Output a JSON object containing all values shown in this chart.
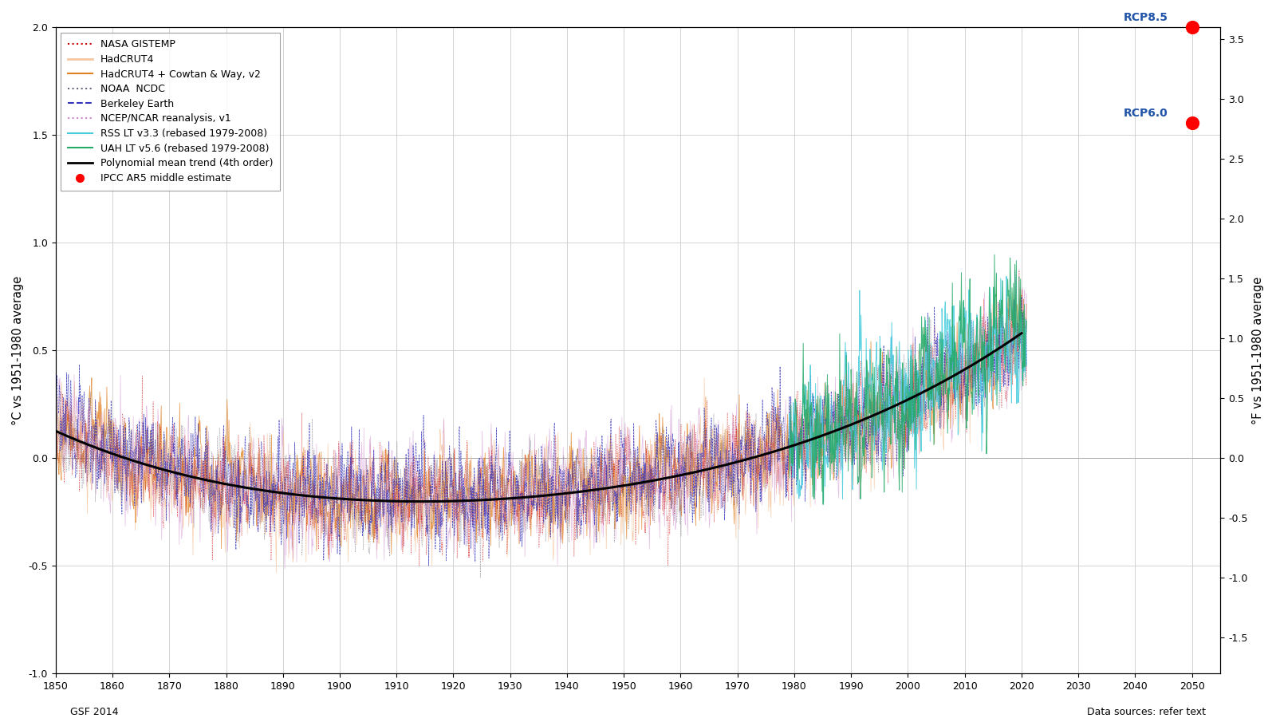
{
  "title": "",
  "ylabel_left": "°C vs 1951-1980 average",
  "ylabel_right": "°F vs 1951-1980 average",
  "xlim": [
    1850,
    2055
  ],
  "ylim_c": [
    -1.0,
    2.0
  ],
  "xticks": [
    1850,
    1860,
    1870,
    1880,
    1890,
    1900,
    1910,
    1920,
    1930,
    1940,
    1950,
    1960,
    1970,
    1980,
    1990,
    2000,
    2010,
    2020,
    2030,
    2040,
    2050
  ],
  "yticks_c": [
    -1.0,
    -0.5,
    0.0,
    0.5,
    1.0,
    1.5,
    2.0
  ],
  "yticks_f": [
    -1.5,
    -1.0,
    -0.5,
    0.0,
    0.5,
    1.0,
    1.5,
    2.0,
    2.5,
    3.0,
    3.5
  ],
  "rcp85_year": 2050,
  "rcp85_value_c": 2.0,
  "rcp60_year": 2050,
  "rcp60_value_c": 1.5556,
  "background_color": "#ffffff",
  "grid_color": "#cccccc",
  "footer_left": "GSF 2014",
  "footer_right": "Data sources: refer text",
  "poly_color": "#000000",
  "nasa_color": "#cc0000",
  "hadcrut4_color": "#f5c6a0",
  "hadcrut4cw_color": "#e08020",
  "noaa_color": "#666677",
  "berkeley_color": "#3333bb",
  "ncep_color": "#cc88cc",
  "rss_color": "#44ccdd",
  "uah_color": "#22aa66",
  "legend_edge": "#888888"
}
